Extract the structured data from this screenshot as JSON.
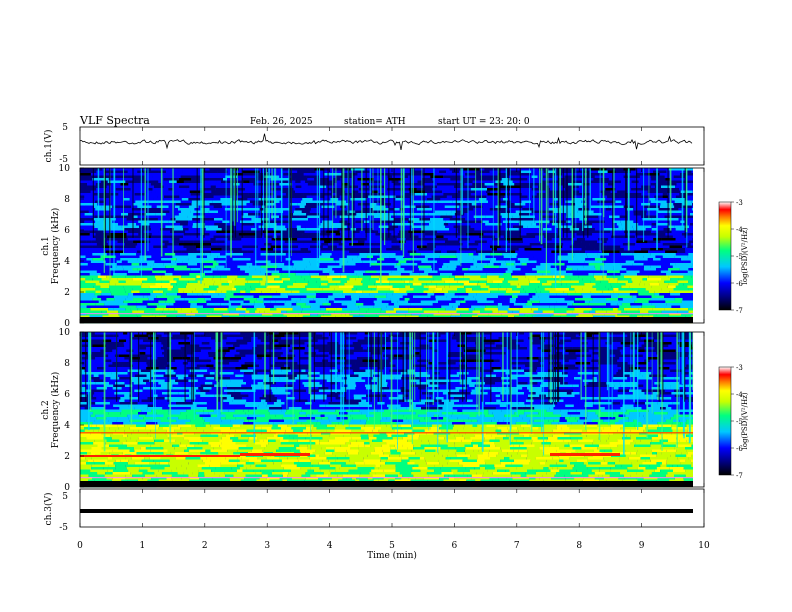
{
  "header": {
    "title": "VLF  Spectra",
    "date": "Feb. 26, 2025",
    "station": "station= ATH",
    "start": "start  UT  =    23: 20: 0"
  },
  "chart_data": [
    {
      "type": "line",
      "name_label": "ch.1(V)",
      "ylim": [
        -5,
        5
      ],
      "yticks": [
        "5",
        "-5"
      ],
      "description_values": "noisy waveform around ~0 V"
    },
    {
      "type": "heatmap",
      "channel_label": "ch.1",
      "ylabel": "Frequency  (kHz)",
      "ylim": [
        0,
        10
      ],
      "yticks": [
        "0",
        "2",
        "4",
        "6",
        "8",
        "10"
      ],
      "colorbar": {
        "label": "log(PSD)(V²/Hz)",
        "range": [
          -7,
          -3
        ],
        "ticks": [
          "-3",
          "-4",
          "-5",
          "-6",
          "-7"
        ]
      }
    },
    {
      "type": "heatmap",
      "channel_label": "ch.2",
      "ylabel": "Frequency  (kHz)",
      "ylim": [
        0,
        10
      ],
      "yticks": [
        "0",
        "2",
        "4",
        "6",
        "8",
        "10"
      ],
      "colorbar": {
        "label": "log(PSD)(V²/Hz)",
        "range": [
          -7,
          -3
        ],
        "ticks": [
          "-3",
          "-4",
          "-5",
          "-6",
          "-7"
        ]
      }
    },
    {
      "type": "line",
      "name_label": "ch.3(V)",
      "ylim": [
        -5,
        5
      ],
      "yticks": [
        "5",
        "-5"
      ]
    }
  ],
  "xaxis": {
    "label": "Time  (min)",
    "xlim": [
      0,
      10
    ],
    "ticks": [
      "0",
      "1",
      "2",
      "3",
      "4",
      "5",
      "6",
      "7",
      "8",
      "9",
      "10"
    ]
  },
  "colors": {
    "scale": [
      "#000000",
      "#00007f",
      "#0000ff",
      "#00c8ff",
      "#00ff80",
      "#c8ff00",
      "#ffff00",
      "#ff7f00",
      "#ff0000",
      "#ffffff"
    ]
  }
}
